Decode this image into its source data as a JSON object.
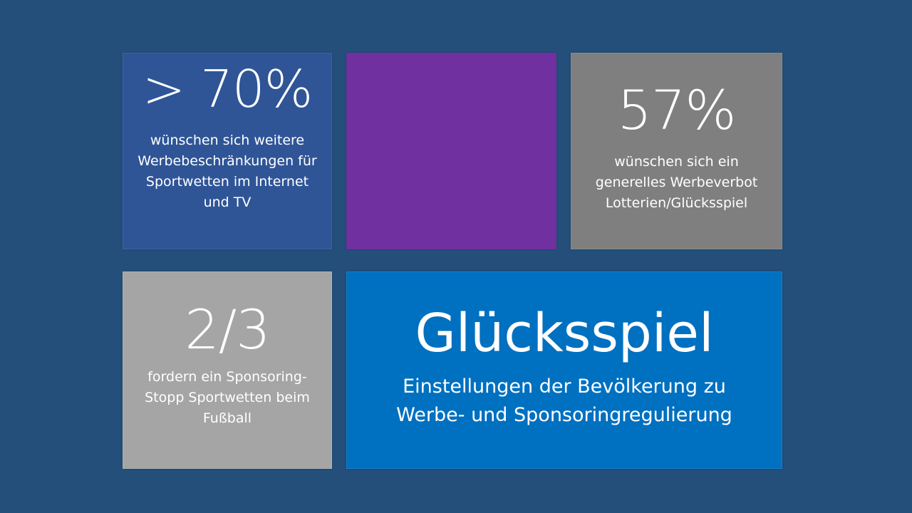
{
  "colors": {
    "background": "#234f7a",
    "tile_blue_dark": "#2f5597",
    "tile_purple": "#7030a0",
    "tile_gray_dark": "#7f7f7f",
    "tile_gray_light": "#a5a5a5",
    "tile_blue": "#0070c0",
    "text": "#ffffff"
  },
  "tiles": {
    "advertising_restrictions": {
      "stat": "> 70%",
      "lines": [
        "wünschen sich weitere",
        "Werbebeschränkungen für",
        "Sportwetten im Internet",
        "und TV"
      ]
    },
    "purple_placeholder": {},
    "advertising_ban": {
      "stat": "57%",
      "lines": [
        "wünschen sich ein",
        "generelles Werbeverbot",
        "Lotterien/Glücksspiel"
      ]
    },
    "sponsoring_stop": {
      "stat": "2/3",
      "lines": [
        "fordern ein Sponsoring-",
        "Stopp Sportwetten beim",
        "Fußball"
      ]
    },
    "title": {
      "heading": "Glücksspiel",
      "lines": [
        "Einstellungen der Bevölkerung zu",
        "Werbe- und Sponsoringregulierung"
      ]
    }
  }
}
